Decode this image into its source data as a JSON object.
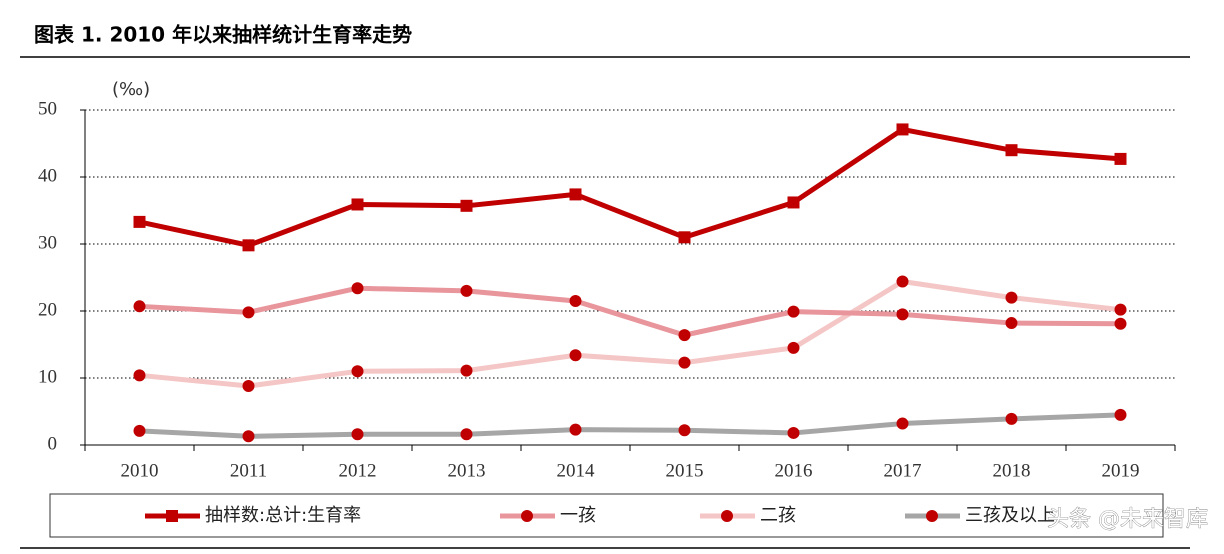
{
  "chart_data": {
    "type": "line",
    "title": "图表 1. 2010 年以来抽样统计生育率走势",
    "y_label": "(‰)",
    "categories": [
      "2010",
      "2011",
      "2012",
      "2013",
      "2014",
      "2015",
      "2016",
      "2017",
      "2018",
      "2019"
    ],
    "series": [
      {
        "name": "抽样数:总计:生育率",
        "color": "#c00000",
        "marker": "square",
        "marker_color": "#c00000",
        "values": [
          33.3,
          29.8,
          35.9,
          35.7,
          37.4,
          31.0,
          36.2,
          47.1,
          44.0,
          42.7
        ]
      },
      {
        "name": "一孩",
        "color": "#e8959c",
        "marker": "circle",
        "marker_color": "#c00000",
        "values": [
          20.7,
          19.8,
          23.4,
          23.0,
          21.5,
          16.4,
          19.9,
          19.5,
          18.2,
          18.1
        ]
      },
      {
        "name": "二孩",
        "color": "#f4c6c6",
        "marker": "circle",
        "marker_color": "#c00000",
        "values": [
          10.4,
          8.8,
          11.0,
          11.1,
          13.4,
          12.3,
          14.5,
          24.4,
          22.0,
          20.2
        ]
      },
      {
        "name": "三孩及以上",
        "color": "#a6a6a6",
        "marker": "circle",
        "marker_color": "#c00000",
        "values": [
          2.1,
          1.3,
          1.6,
          1.6,
          2.3,
          2.2,
          1.8,
          3.2,
          3.9,
          4.5
        ]
      }
    ],
    "ylim": [
      0,
      50
    ],
    "yticks": [
      0,
      10,
      20,
      30,
      40,
      50
    ],
    "grid": true,
    "watermark": "头条 @未来智库"
  }
}
